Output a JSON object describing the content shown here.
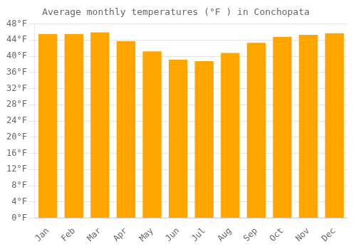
{
  "chart_data": {
    "type": "bar",
    "title": "Average monthly temperatures (°F ) in Conchopata",
    "categories": [
      "Jan",
      "Feb",
      "Mar",
      "Apr",
      "May",
      "Jun",
      "Jul",
      "Aug",
      "Sep",
      "Oct",
      "Nov",
      "Dec"
    ],
    "values": [
      45.5,
      45.5,
      45.9,
      43.7,
      41.2,
      39.2,
      38.8,
      40.8,
      43.3,
      44.8,
      45.3,
      45.7
    ],
    "color": "#FFA500",
    "ylim": [
      0,
      48
    ],
    "yticks": [
      {
        "value": 0,
        "label": "0°F"
      },
      {
        "value": 4,
        "label": "4°F"
      },
      {
        "value": 8,
        "label": "8°F"
      },
      {
        "value": 12,
        "label": "12°F"
      },
      {
        "value": 16,
        "label": "16°F"
      },
      {
        "value": 20,
        "label": "20°F"
      },
      {
        "value": 24,
        "label": "24°F"
      },
      {
        "value": 28,
        "label": "28°F"
      },
      {
        "value": 32,
        "label": "32°F"
      },
      {
        "value": 36,
        "label": "36°F"
      },
      {
        "value": 40,
        "label": "40°F"
      },
      {
        "value": 44,
        "label": "44°F"
      },
      {
        "value": 48,
        "label": "48°F"
      }
    ],
    "grid": true
  }
}
